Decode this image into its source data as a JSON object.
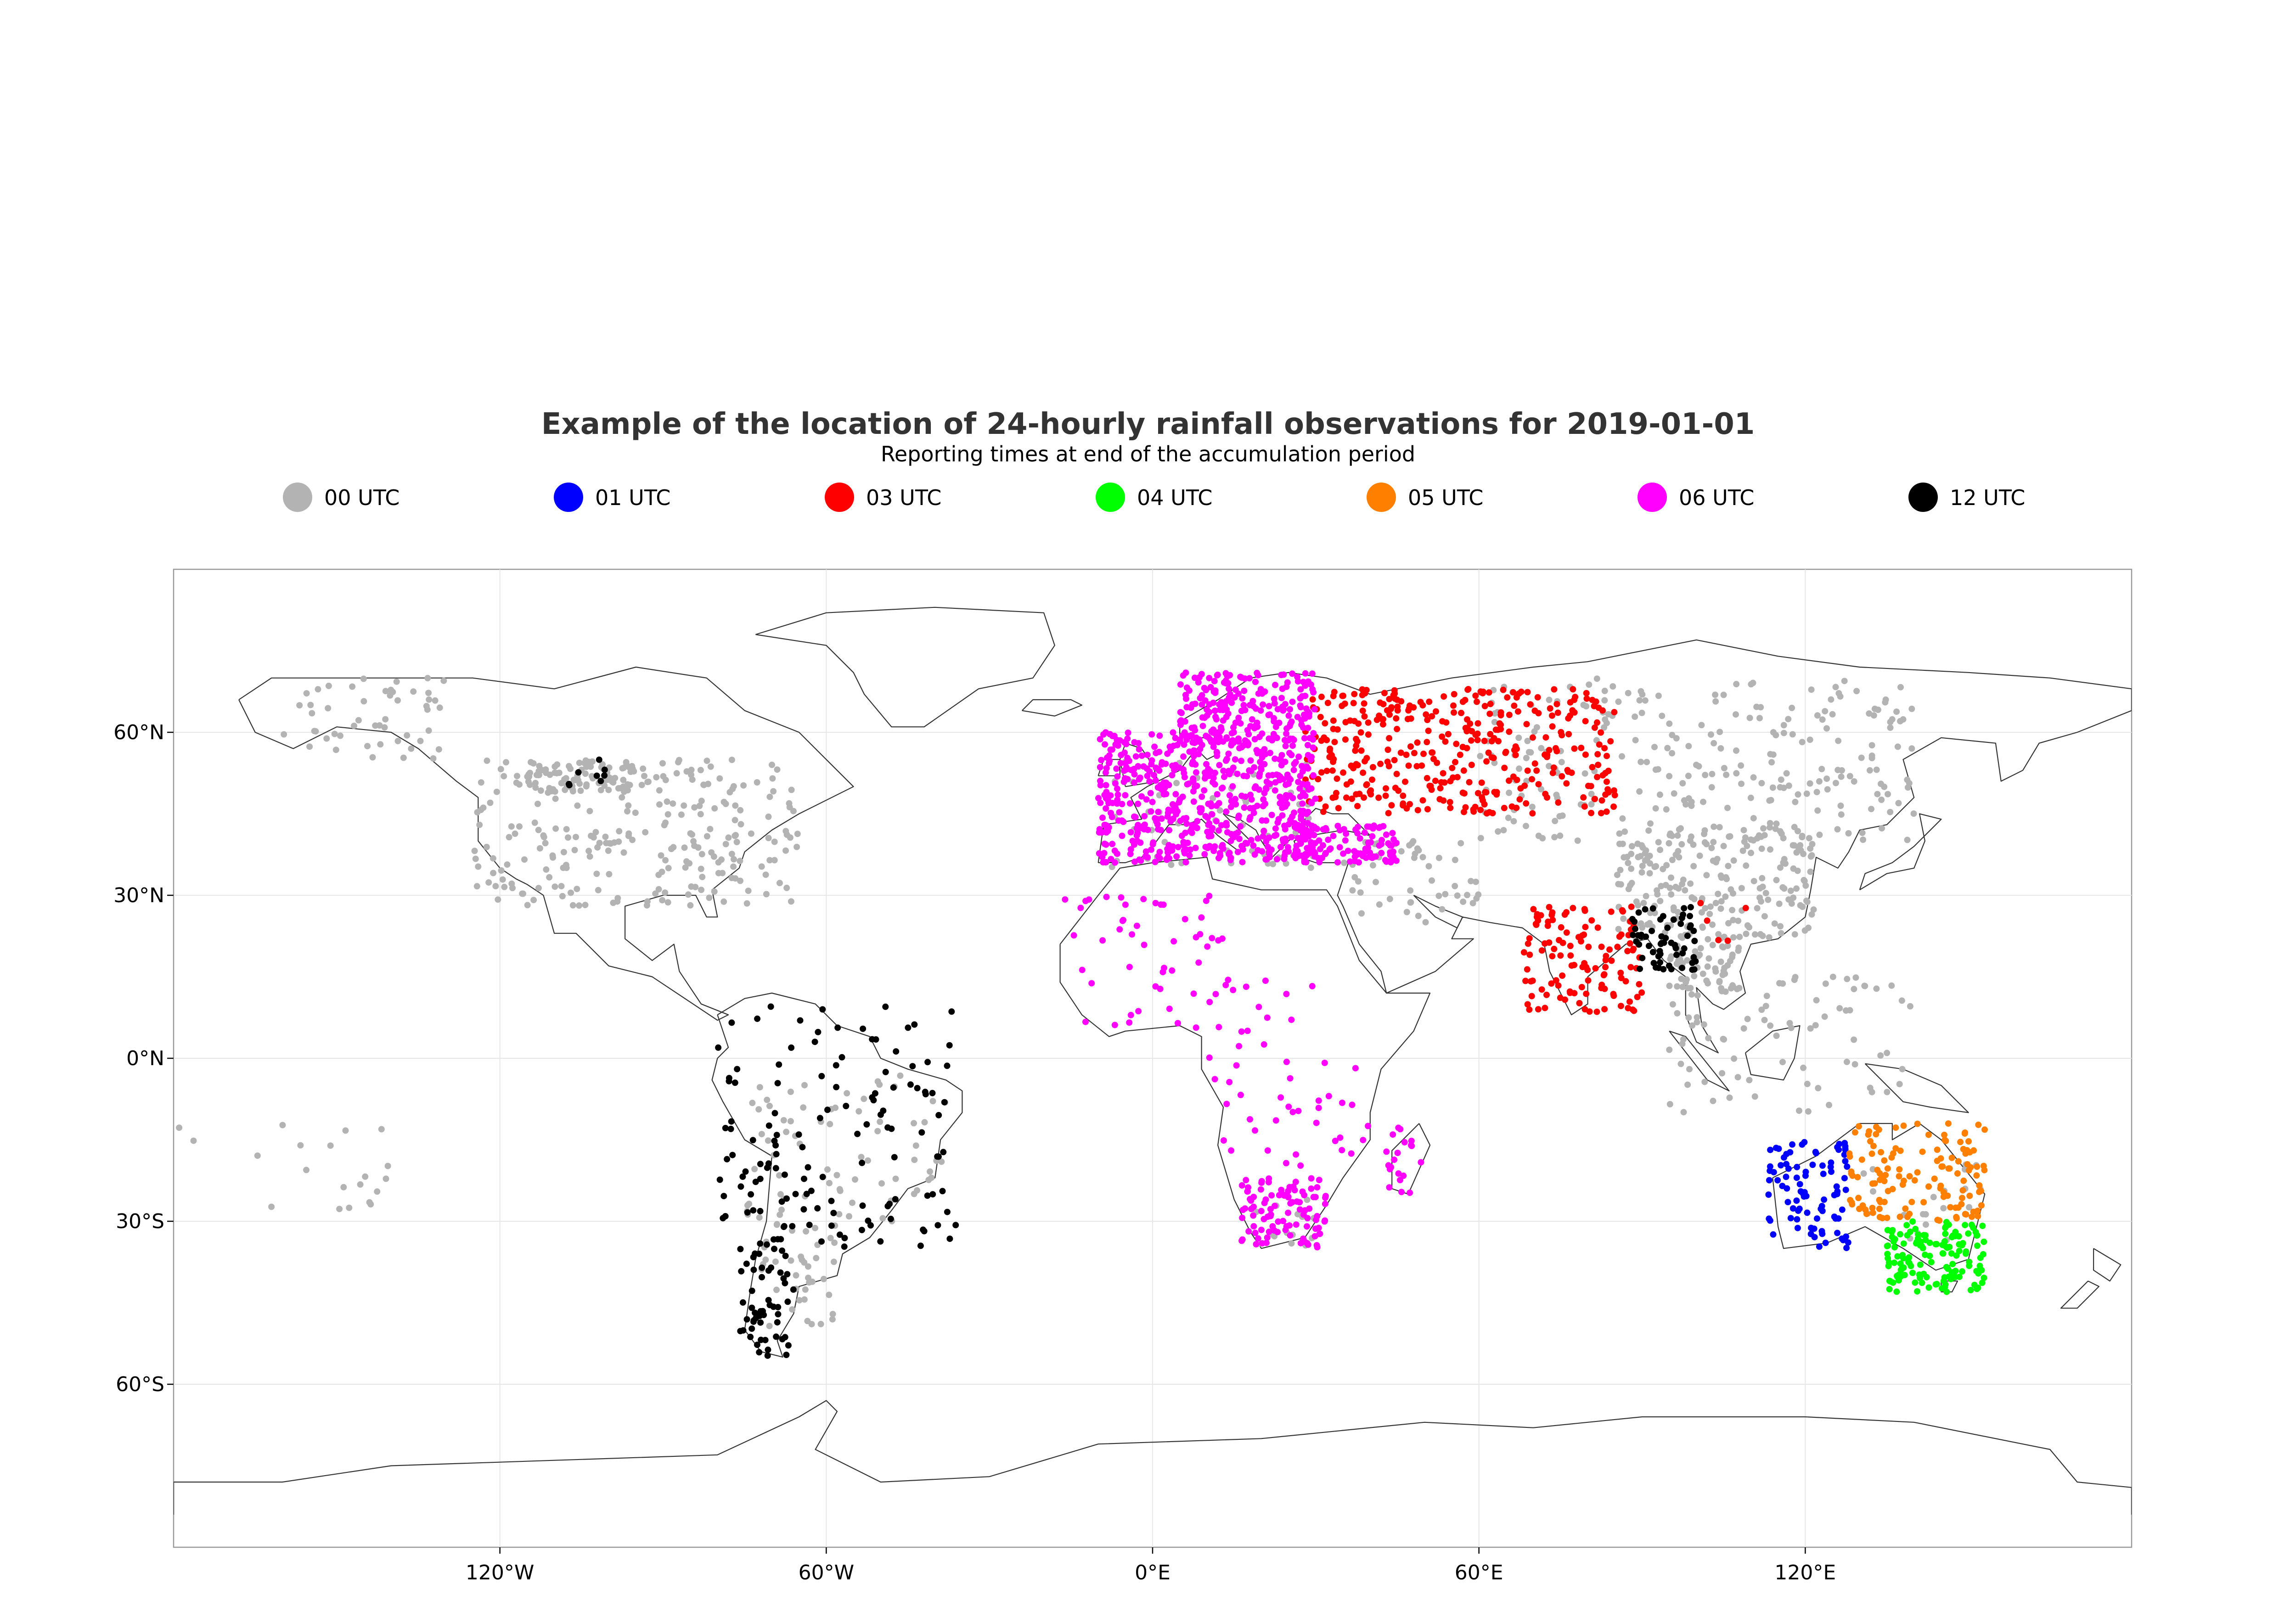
{
  "title": "Example of the location of 24-hourly rainfall observations for 2019-01-01",
  "subtitle": "Reporting times at end of the accumulation period",
  "legend": [
    {
      "label": "00 UTC",
      "color": "#b3b3b3"
    },
    {
      "label": "01 UTC",
      "color": "#0000ff"
    },
    {
      "label": "03 UTC",
      "color": "#ff0000"
    },
    {
      "label": "04 UTC",
      "color": "#00ff00"
    },
    {
      "label": "05 UTC",
      "color": "#ff8000"
    },
    {
      "label": "06 UTC",
      "color": "#ff00ff"
    },
    {
      "label": "12 UTC",
      "color": "#000000"
    }
  ],
  "axes": {
    "x_ticks": [
      {
        "value": -120,
        "label": "120°W"
      },
      {
        "value": -60,
        "label": "60°W"
      },
      {
        "value": 0,
        "label": "0°E"
      },
      {
        "value": 60,
        "label": "60°E"
      },
      {
        "value": 120,
        "label": "120°E"
      }
    ],
    "y_ticks": [
      {
        "value": 60,
        "label": "60°N"
      },
      {
        "value": 30,
        "label": "30°N"
      },
      {
        "value": 0,
        "label": "0°N"
      },
      {
        "value": -30,
        "label": "30°S"
      },
      {
        "value": -60,
        "label": "60°S"
      }
    ],
    "lon_range": [
      -180,
      180
    ],
    "lat_range": [
      -90,
      90
    ],
    "projection": "equirectangular",
    "grid": true
  },
  "chart_data": {
    "type": "scatter",
    "title": "Example of the location of 24-hourly rainfall observations for 2019-01-01",
    "subtitle": "Reporting times at end of the accumulation period",
    "xlim": [
      -180,
      180
    ],
    "ylim": [
      -90,
      90
    ],
    "legend_placement": "top",
    "grid": true,
    "series": [
      {
        "name": "00 UTC",
        "color": "#b3b3b3",
        "regions": [
          {
            "lon": [
              -125,
              -65
            ],
            "lat": [
              28,
              55
            ],
            "n": 260
          },
          {
            "lon": [
              -160,
              -130
            ],
            "lat": [
              55,
              70
            ],
            "n": 50
          },
          {
            "lon": [
              -115,
              -95
            ],
            "lat": [
              49,
              55
            ],
            "n": 70
          },
          {
            "lon": [
              -75,
              -38
            ],
            "lat": [
              -30,
              -2
            ],
            "n": 70
          },
          {
            "lon": [
              -72,
              -58
            ],
            "lat": [
              -50,
              -30
            ],
            "n": 40
          },
          {
            "lon": [
              60,
              140
            ],
            "lat": [
              40,
              70
            ],
            "n": 260
          },
          {
            "lon": [
              85,
              122
            ],
            "lat": [
              22,
              42
            ],
            "n": 220
          },
          {
            "lon": [
              95,
              108
            ],
            "lat": [
              12,
              22
            ],
            "n": 60
          },
          {
            "lon": [
              95,
              140
            ],
            "lat": [
              -10,
              15
            ],
            "n": 80
          },
          {
            "lon": [
              -10,
              30
            ],
            "lat": [
              35,
              55
            ],
            "n": 60
          },
          {
            "lon": [
              35,
              60
            ],
            "lat": [
              25,
              40
            ],
            "n": 50
          },
          {
            "lon": [
              -180,
              -140
            ],
            "lat": [
              -30,
              -10
            ],
            "n": 20
          },
          {
            "lon": [
              18,
              30
            ],
            "lat": [
              -35,
              -25
            ],
            "n": 15
          },
          {
            "lon": [
              130,
              154
            ],
            "lat": [
              -35,
              -18
            ],
            "n": 20
          }
        ]
      },
      {
        "name": "01 UTC",
        "color": "#0000ff",
        "regions": [
          {
            "lon": [
              113,
              128
            ],
            "lat": [
              -35,
              -15
            ],
            "n": 90
          }
        ]
      },
      {
        "name": "03 UTC",
        "color": "#ff0000",
        "regions": [
          {
            "lon": [
              28,
              85
            ],
            "lat": [
              45,
              68
            ],
            "n": 380
          },
          {
            "lon": [
              68,
              90
            ],
            "lat": [
              8,
              28
            ],
            "n": 120
          },
          {
            "lon": [
              100,
              110
            ],
            "lat": [
              20,
              30
            ],
            "n": 5
          }
        ]
      },
      {
        "name": "04 UTC",
        "color": "#00ff00",
        "regions": [
          {
            "lon": [
              135,
              153
            ],
            "lat": [
              -43,
              -30
            ],
            "n": 140
          }
        ]
      },
      {
        "name": "05 UTC",
        "color": "#ff8000",
        "regions": [
          {
            "lon": [
              128,
              153
            ],
            "lat": [
              -30,
              -12
            ],
            "n": 130
          }
        ]
      },
      {
        "name": "06 UTC",
        "color": "#ff00ff",
        "regions": [
          {
            "lon": [
              -10,
              30
            ],
            "lat": [
              36,
              60
            ],
            "n": 600
          },
          {
            "lon": [
              5,
              30
            ],
            "lat": [
              58,
              71
            ],
            "n": 200
          },
          {
            "lon": [
              26,
              45
            ],
            "lat": [
              36,
              43
            ],
            "n": 120
          },
          {
            "lon": [
              -17,
              15
            ],
            "lat": [
              5,
              30
            ],
            "n": 50
          },
          {
            "lon": [
              10,
              40
            ],
            "lat": [
              -20,
              15
            ],
            "n": 50
          },
          {
            "lon": [
              16,
              32
            ],
            "lat": [
              -35,
              -22
            ],
            "n": 100
          },
          {
            "lon": [
              43,
              50
            ],
            "lat": [
              -25,
              -12
            ],
            "n": 20
          }
        ]
      },
      {
        "name": "12 UTC",
        "color": "#000000",
        "regions": [
          {
            "lon": [
              -80,
              -35
            ],
            "lat": [
              -35,
              10
            ],
            "n": 130
          },
          {
            "lon": [
              -76,
              -66
            ],
            "lat": [
              -55,
              -30
            ],
            "n": 60
          },
          {
            "lon": [
              88,
              100
            ],
            "lat": [
              16,
              28
            ],
            "n": 60
          },
          {
            "lon": [
              -110,
              -100
            ],
            "lat": [
              50,
              55
            ],
            "n": 8
          }
        ]
      }
    ]
  }
}
